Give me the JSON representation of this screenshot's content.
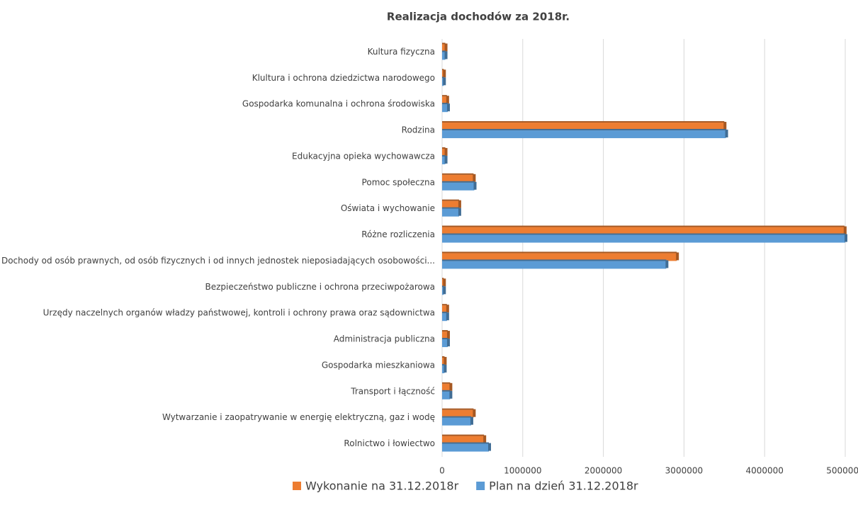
{
  "chart_data": {
    "type": "hbar",
    "title": "Realizacja dochodów za  2018r.",
    "categories": [
      "Kultura fizyczna",
      "Klultura i ochrona dziedzictwa narodowego",
      "Gospodarka komunalna i ochrona środowiska",
      "Rodzina",
      "Edukacyjna opieka wychowawcza",
      "Pomoc społeczna",
      "Oświata i wychowanie",
      "Różne rozliczenia",
      "Dochody od osób prawnych, od osób fizycznych i od innych jednostek nieposiadających osobowości...",
      "Bezpieczeństwo publiczne i ochrona przeciwpożarowa",
      "Urzędy naczelnych organów władzy państwowej, kontroli i ochrony prawa oraz sądownictwa",
      "Administracja publiczna",
      "Gospodarka mieszkaniowa",
      "Transport i łączność",
      "Wytwarzanie i zaopatrywanie w energię elektryczną, gaz i wodę",
      "Rolnictwo i łowiectwo"
    ],
    "series": [
      {
        "name": "Wykonanie na 31.12.2018r",
        "color": "#ed7d31",
        "values": [
          40000,
          20000,
          60000,
          3500000,
          40000,
          390000,
          210000,
          4990000,
          2910000,
          20000,
          60000,
          70000,
          30000,
          100000,
          390000,
          520000
        ]
      },
      {
        "name": "Plan na dzień 31.12.2018r",
        "color": "#5b9bd5",
        "values": [
          40000,
          20000,
          70000,
          3520000,
          40000,
          400000,
          210000,
          5000000,
          2780000,
          20000,
          60000,
          70000,
          30000,
          100000,
          360000,
          580000
        ]
      }
    ],
    "xlim": [
      0,
      5000000
    ],
    "xticks": [
      0,
      1000000,
      2000000,
      3000000,
      4000000,
      5000000
    ],
    "grid": true
  }
}
